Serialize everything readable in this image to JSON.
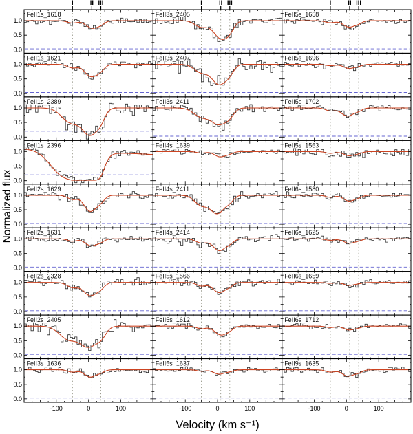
{
  "figure": {
    "ylabel": "Normalized flux",
    "xlabel": "Velocity (km s⁻¹)",
    "y_tick_labels": [
      "1.0",
      "0.5",
      "0.0"
    ],
    "y_tick_values": [
      1.0,
      0.5,
      0.0
    ],
    "x_tick_labels": [
      "-100",
      "0",
      "100"
    ],
    "x_tick_values": [
      -100,
      0,
      100
    ],
    "component_labels": [
      "I",
      "II",
      "III"
    ],
    "component_velocities": [
      -50,
      10,
      38
    ],
    "colors": {
      "histogram": "#2b2b2b",
      "model_fit": "#cc4422",
      "component_line": "#8f8f80",
      "error_line": "#4a4ac8",
      "frame": "#000000",
      "background": "#ffffff"
    }
  },
  "chart_data": {
    "type": "line",
    "description": "3x9 grid of normalized FeII absorption-line velocity profiles: black histogram = observed spectrum, red curve = Voigt/Gaussian model fit, blue dashed line = error/zero level, gray dotted vertical lines = velocity components I, II, III.",
    "x_range": [
      -200,
      200
    ],
    "y_range": [
      -0.12,
      1.38
    ],
    "grid": {
      "rows": 9,
      "cols": 3
    },
    "components_format": "[velocity_km_s, depth, sigma_km_s]",
    "panels": [
      {
        "label": "FeII1s_1618",
        "components": [
          [
            -50,
            0.08,
            16
          ],
          [
            10,
            0.25,
            18
          ],
          [
            38,
            0.1,
            13
          ]
        ],
        "noise": 0.05,
        "seed": 101,
        "error_level": 0.03,
        "slope": 0
      },
      {
        "label": "FeII3s_2405",
        "components": [
          [
            -50,
            0.22,
            20
          ],
          [
            10,
            0.6,
            22
          ],
          [
            38,
            0.22,
            14
          ]
        ],
        "noise": 0.09,
        "seed": 102,
        "error_level": 0.03,
        "slope": 0
      },
      {
        "label": "FeII5s_1658",
        "components": [
          [
            -50,
            0.07,
            15
          ],
          [
            8,
            0.22,
            18
          ],
          [
            38,
            0.07,
            12
          ]
        ],
        "noise": 0.05,
        "seed": 103,
        "error_level": 0.03,
        "slope": 0
      },
      {
        "label": "FeII1s_1621",
        "components": [
          [
            -50,
            0.12,
            16
          ],
          [
            8,
            0.42,
            20
          ],
          [
            38,
            0.14,
            13
          ]
        ],
        "noise": 0.07,
        "seed": 104,
        "error_level": 0.03,
        "slope": 0
      },
      {
        "label": "FeII3s_2407",
        "components": [
          [
            -50,
            0.28,
            22
          ],
          [
            5,
            0.68,
            22
          ],
          [
            38,
            0.22,
            14
          ]
        ],
        "noise": 0.13,
        "seed": 105,
        "error_level": 0.03,
        "slope": 0
      },
      {
        "label": "FeII5s_1696",
        "components": [
          [
            -50,
            0.05,
            14
          ],
          [
            8,
            0.14,
            17
          ],
          [
            38,
            0.05,
            12
          ]
        ],
        "noise": 0.05,
        "seed": 106,
        "error_level": 0.03,
        "slope": 0
      },
      {
        "label": "FeII1s_2389",
        "components": [
          [
            -55,
            0.5,
            28
          ],
          [
            5,
            0.88,
            24
          ],
          [
            38,
            0.28,
            14
          ]
        ],
        "noise": 0.11,
        "seed": 107,
        "error_level": 0.2,
        "slope": 0
      },
      {
        "label": "FeII3s_2411",
        "components": [
          [
            -50,
            0.3,
            24
          ],
          [
            5,
            0.55,
            24
          ],
          [
            38,
            0.18,
            14
          ]
        ],
        "noise": 0.08,
        "seed": 108,
        "error_level": 0.03,
        "slope": 0
      },
      {
        "label": "FeII5s_1702",
        "components": [
          [
            -50,
            0.1,
            15
          ],
          [
            3,
            0.28,
            19
          ],
          [
            38,
            0.08,
            12
          ]
        ],
        "noise": 0.06,
        "seed": 109,
        "error_level": 0.03,
        "slope": 0
      },
      {
        "label": "FeII1s_2396",
        "components": [
          [
            -75,
            0.88,
            42
          ],
          [
            0,
            0.95,
            32
          ],
          [
            38,
            0.35,
            13
          ]
        ],
        "noise": 0.06,
        "seed": 110,
        "error_level": 0.2,
        "slope": 0.1
      },
      {
        "label": "FeII4s_1639",
        "components": [
          [
            -50,
            0.05,
            14
          ],
          [
            8,
            0.18,
            17
          ],
          [
            38,
            0.06,
            12
          ]
        ],
        "noise": 0.045,
        "seed": 111,
        "error_level": 0.03,
        "slope": 0
      },
      {
        "label": "FeII5s_1563",
        "components": [
          [
            -50,
            0.06,
            14
          ],
          [
            8,
            0.14,
            17
          ],
          [
            38,
            0.05,
            12
          ]
        ],
        "noise": 0.07,
        "seed": 112,
        "error_level": 0.03,
        "slope": 0
      },
      {
        "label": "FeII2s_1629",
        "components": [
          [
            -50,
            0.14,
            15
          ],
          [
            5,
            0.55,
            19
          ],
          [
            38,
            0.18,
            13
          ]
        ],
        "noise": 0.06,
        "seed": 113,
        "error_level": 0.03,
        "slope": 0
      },
      {
        "label": "FeII4s_2411",
        "components": [
          [
            -50,
            0.34,
            21
          ],
          [
            0,
            0.62,
            21
          ],
          [
            38,
            0.18,
            13
          ]
        ],
        "noise": 0.07,
        "seed": 114,
        "error_level": 0.03,
        "slope": 0
      },
      {
        "label": "FeII6s_1580",
        "components": [
          [
            -50,
            0.07,
            14
          ],
          [
            8,
            0.2,
            17
          ],
          [
            38,
            0.06,
            12
          ]
        ],
        "noise": 0.05,
        "seed": 115,
        "error_level": 0.03,
        "slope": 0
      },
      {
        "label": "FeII2s_1631",
        "components": [
          [
            -50,
            0.08,
            14
          ],
          [
            8,
            0.24,
            18
          ],
          [
            38,
            0.08,
            12
          ]
        ],
        "noise": 0.05,
        "seed": 116,
        "error_level": 0.03,
        "slope": 0
      },
      {
        "label": "FeII4s_2414",
        "components": [
          [
            -50,
            0.14,
            17
          ],
          [
            5,
            0.4,
            19
          ],
          [
            38,
            0.12,
            13
          ]
        ],
        "noise": 0.09,
        "seed": 117,
        "error_level": 0.03,
        "slope": 0
      },
      {
        "label": "FeII6s_1625",
        "components": [
          [
            -50,
            0.05,
            14
          ],
          [
            8,
            0.15,
            17
          ],
          [
            38,
            0.05,
            12
          ]
        ],
        "noise": 0.045,
        "seed": 118,
        "error_level": 0.03,
        "slope": 0
      },
      {
        "label": "FeII2s_2328",
        "components": [
          [
            -50,
            0.17,
            17
          ],
          [
            5,
            0.45,
            21
          ],
          [
            38,
            0.14,
            13
          ]
        ],
        "noise": 0.07,
        "seed": 119,
        "error_level": 0.03,
        "slope": 0
      },
      {
        "label": "FeII5s_1566",
        "components": [
          [
            -50,
            0.12,
            15
          ],
          [
            5,
            0.35,
            19
          ],
          [
            38,
            0.1,
            12
          ]
        ],
        "noise": 0.06,
        "seed": 120,
        "error_level": 0.03,
        "slope": 0
      },
      {
        "label": "FeII6s_1659",
        "components": [
          [
            -50,
            0.03,
            13
          ],
          [
            8,
            0.1,
            16
          ],
          [
            38,
            0.03,
            12
          ]
        ],
        "noise": 0.045,
        "seed": 121,
        "error_level": 0.03,
        "slope": 0
      },
      {
        "label": "FeII2s_2405",
        "components": [
          [
            -62,
            0.45,
            28
          ],
          [
            0,
            0.68,
            26
          ],
          [
            40,
            0.28,
            16
          ]
        ],
        "noise": 0.1,
        "seed": 122,
        "error_level": 0.03,
        "slope": 0
      },
      {
        "label": "FeII5s_1612",
        "components": [
          [
            -50,
            0.09,
            15
          ],
          [
            10,
            0.3,
            19
          ],
          [
            38,
            0.09,
            12
          ]
        ],
        "noise": 0.05,
        "seed": 123,
        "error_level": 0.03,
        "slope": 0
      },
      {
        "label": "FeII6s_1712",
        "components": [
          [
            -50,
            0.05,
            14
          ],
          [
            8,
            0.13,
            16
          ],
          [
            38,
            0.05,
            12
          ]
        ],
        "noise": 0.05,
        "seed": 124,
        "error_level": 0.03,
        "slope": 0
      },
      {
        "label": "FeII3s_1636",
        "components": [
          [
            -50,
            0.08,
            14
          ],
          [
            5,
            0.25,
            18
          ],
          [
            38,
            0.08,
            12
          ]
        ],
        "noise": 0.05,
        "seed": 125,
        "error_level": 0.03,
        "slope": 0
      },
      {
        "label": "FeII5s_1637",
        "components": [
          [
            -50,
            0.05,
            13
          ],
          [
            5,
            0.15,
            17
          ],
          [
            38,
            0.05,
            12
          ]
        ],
        "noise": 0.045,
        "seed": 126,
        "error_level": 0.03,
        "slope": 0
      },
      {
        "label": "FeII9s_1635",
        "components": [
          [
            -50,
            0.08,
            14
          ],
          [
            5,
            0.22,
            18
          ],
          [
            38,
            0.08,
            12
          ]
        ],
        "noise": 0.05,
        "seed": 127,
        "error_level": 0.03,
        "slope": 0
      }
    ]
  }
}
